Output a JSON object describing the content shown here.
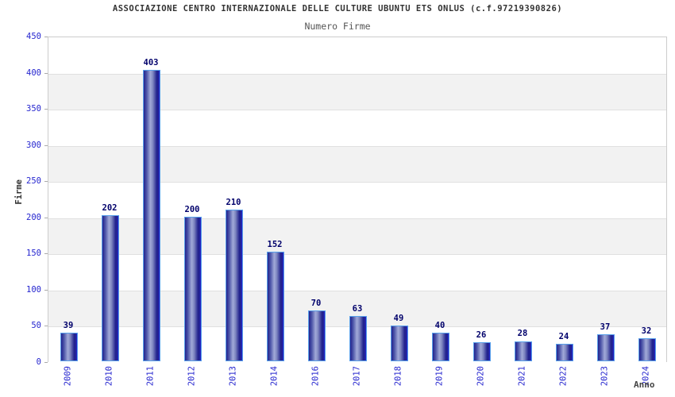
{
  "title": "ASSOCIAZIONE CENTRO INTERNAZIONALE DELLE CULTURE UBUNTU ETS ONLUS (c.f.97219390826)",
  "subtitle": "Numero Firme",
  "chart_data": {
    "type": "bar",
    "title": "Numero Firme",
    "xlabel": "Anno",
    "ylabel": "Firme",
    "categories": [
      "2009",
      "2010",
      "2011",
      "2012",
      "2013",
      "2014",
      "2016",
      "2017",
      "2018",
      "2019",
      "2020",
      "2021",
      "2022",
      "2023",
      "2024"
    ],
    "values": [
      39,
      202,
      403,
      200,
      210,
      152,
      70,
      63,
      49,
      40,
      26,
      28,
      24,
      37,
      32
    ],
    "ylim": [
      0,
      450
    ],
    "yticks": [
      0,
      50,
      100,
      150,
      200,
      250,
      300,
      350,
      400,
      450
    ],
    "grid": "horizontal-alternating-bands",
    "legend": "none",
    "colors": {
      "bar_dark": "#23238e",
      "bar_light": "#a2aad8",
      "bar_edge_stripe": "#2323d2",
      "bar_border": "#58a0ea",
      "tick_label": "#2626cf",
      "value_label": "#00006b",
      "band_alt": "#f2f2f2",
      "band_base": "#ffffff",
      "grid_line": "#e0e0e0",
      "plot_border": "#cccccc",
      "title_color": "#333333",
      "subtitle_color": "#555555",
      "axis_title_color": "#444444"
    }
  }
}
